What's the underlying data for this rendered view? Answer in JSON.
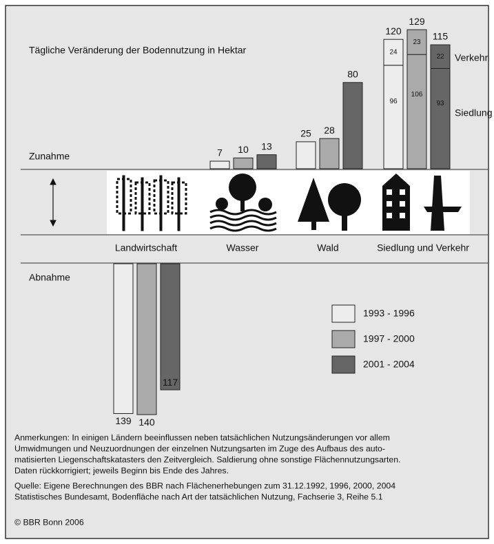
{
  "chart_data": {
    "type": "bar",
    "title": "Tägliche Veränderung der Bodennutzung in Hektar",
    "increase_label": "Zunahme",
    "decrease_label": "Abnahme",
    "categories": [
      "Landwirtschaft",
      "Wasser",
      "Wald",
      "Siedlung und Verkehr"
    ],
    "series": [
      {
        "name": "1993 - 1996",
        "color": "#ededed",
        "values": [
          -139,
          7,
          25,
          null
        ],
        "value_labels": [
          "139",
          "7",
          "25",
          null
        ]
      },
      {
        "name": "1997 - 2000",
        "color": "#aaaaaa",
        "values": [
          -140,
          10,
          28,
          null
        ],
        "value_labels": [
          "140",
          "10",
          "28",
          null
        ]
      },
      {
        "name": "2001 - 2004",
        "color": "#666666",
        "values": [
          -117,
          13,
          80,
          null
        ],
        "value_labels": [
          "117",
          "13",
          "80",
          null
        ]
      }
    ],
    "stack": {
      "category": 3,
      "segments": [
        {
          "name": "Siedlung",
          "values": [
            96,
            106,
            93
          ]
        },
        {
          "name": "Verkehr",
          "values": [
            24,
            23,
            22
          ]
        }
      ],
      "totals": [
        120,
        129,
        115
      ]
    },
    "notes": [
      "Anmerkungen: In einigen Ländern beeinflussen neben tatsächlichen Nutzungsänderungen vor allem",
      "Umwidmungen und Neuzuordnungen der einzelnen Nutzungsarten im Zuge des Aufbaus des auto-",
      "matisierten Liegenschaftskatasters den Zeitvergleich. Saldierung ohne sonstige Flächennutzungsarten.",
      "Daten rückkorrigiert; jeweils Beginn bis Ende des Jahres."
    ],
    "source": [
      "Quelle: Eigene Berechnungen des BBR nach Flächenerhebungen zum 31.12.1992, 1996, 2000, 2004",
      "Statistisches Bundesamt, Bodenfläche nach Art der tatsächlichen Nutzung, Fachserie 3, Reihe 5.1"
    ],
    "copyright": "© BBR Bonn 2006"
  }
}
